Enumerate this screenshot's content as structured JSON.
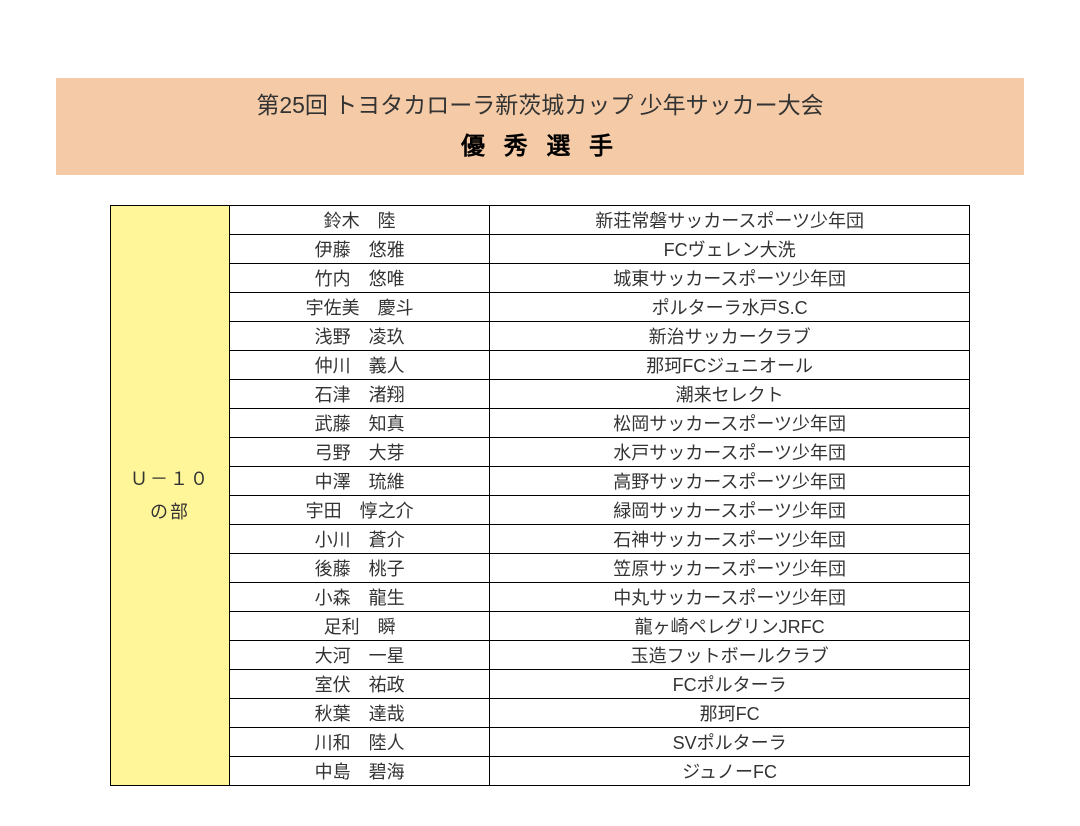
{
  "header": {
    "title": "第25回 トヨタカローラ新茨城カップ 少年サッカー大会",
    "subtitle": "優 秀 選 手",
    "background_color": "#f5cba7",
    "title_fontsize": 23,
    "subtitle_fontsize": 24
  },
  "category": {
    "line1": "Ｕ－１０",
    "line2": "の部",
    "background_color": "#fff699"
  },
  "table": {
    "border_color": "#000000",
    "cell_fontsize": 18,
    "text_color": "#333333",
    "columns": [
      "name",
      "team"
    ],
    "rows": [
      {
        "name": "鈴木　陸",
        "team": "新荘常磐サッカースポーツ少年団"
      },
      {
        "name": "伊藤　悠雅",
        "team": "FCヴェレン大洗"
      },
      {
        "name": "竹内　悠唯",
        "team": "城東サッカースポーツ少年団"
      },
      {
        "name": "宇佐美　慶斗",
        "team": "ポルターラ水戸S.C"
      },
      {
        "name": "浅野　凌玖",
        "team": "新治サッカークラブ"
      },
      {
        "name": "仲川　義人",
        "team": "那珂FCジュニオール"
      },
      {
        "name": "石津　渚翔",
        "team": "潮来セレクト"
      },
      {
        "name": "武藤　知真",
        "team": "松岡サッカースポーツ少年団"
      },
      {
        "name": "弓野　大芽",
        "team": "水戸サッカースポーツ少年団"
      },
      {
        "name": "中澤　琉維",
        "team": "高野サッカースポーツ少年団"
      },
      {
        "name": "宇田　惇之介",
        "team": "緑岡サッカースポーツ少年団"
      },
      {
        "name": "小川　蒼介",
        "team": "石神サッカースポーツ少年団"
      },
      {
        "name": "後藤　桃子",
        "team": "笠原サッカースポーツ少年団"
      },
      {
        "name": "小森　龍生",
        "team": "中丸サッカースポーツ少年団"
      },
      {
        "name": "足利　瞬",
        "team": "龍ヶ崎ペレグリンJRFC"
      },
      {
        "name": "大河　一星",
        "team": "玉造フットボールクラブ"
      },
      {
        "name": "室伏　祐政",
        "team": "FCポルターラ"
      },
      {
        "name": "秋葉　達哉",
        "team": "那珂FC"
      },
      {
        "name": "川和　陸人",
        "team": "SVポルターラ"
      },
      {
        "name": "中島　碧海",
        "team": "ジュノーFC"
      }
    ]
  }
}
